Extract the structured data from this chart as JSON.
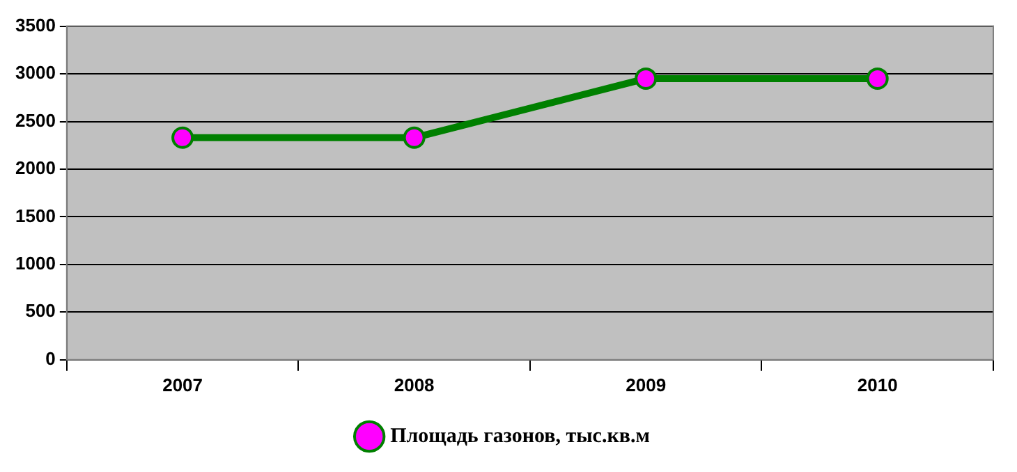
{
  "chart_data": {
    "type": "line",
    "categories": [
      "2007",
      "2008",
      "2009",
      "2010"
    ],
    "series": [
      {
        "name": "Площадь газонов, тыс.кв.м",
        "color": "#008000",
        "values": [
          2330,
          2330,
          2950,
          2950
        ]
      }
    ],
    "ylim": [
      0,
      3500
    ],
    "yticks": [
      0,
      500,
      1000,
      1500,
      2000,
      2500,
      3000,
      3500
    ],
    "grid": "y",
    "legend": "bottom",
    "marker": "circle",
    "line_style": "solid"
  }
}
